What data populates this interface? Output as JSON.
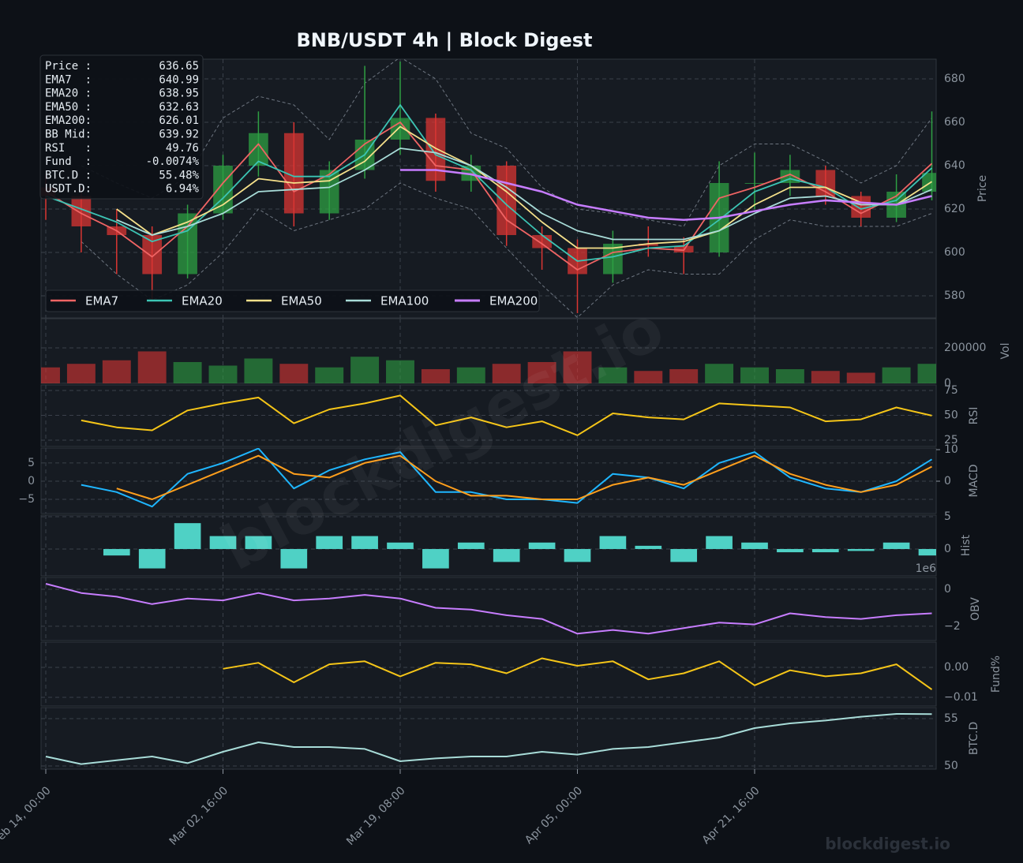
{
  "chart_data": {
    "type": "multi-panel",
    "title": "BNB/USDT  4h  |  Block Digest",
    "watermark": "blockdigest.io",
    "x": [
      "Feb 14, 00:00",
      "Feb 17, 08:00",
      "Feb 20, 16:00",
      "Feb 24, 00:00",
      "Feb 27, 08:00",
      "Mar 02, 16:00",
      "Mar 06, 00:00",
      "Mar 09, 08:00",
      "Mar 12, 16:00",
      "Mar 16, 00:00",
      "Mar 19, 08:00",
      "Mar 22, 16:00",
      "Mar 26, 00:00",
      "Mar 29, 08:00",
      "Apr 01, 16:00",
      "Apr 05, 00:00",
      "Apr 08, 08:00",
      "Apr 11, 16:00",
      "Apr 15, 00:00",
      "Apr 18, 08:00",
      "Apr 21, 16:00",
      "Apr 25, 00:00",
      "Apr 28, 08:00",
      "May 01, 16:00",
      "May 05, 00:00",
      "May 08, 08:00"
    ],
    "xticks": [
      "Feb 14, 00:00",
      "Mar 02, 16:00",
      "Mar 19, 08:00",
      "Apr 05, 00:00",
      "Apr 21, 16:00"
    ],
    "grid": true,
    "info_box": {
      "rows": [
        [
          "Price :",
          "636.65"
        ],
        [
          "EMA7  :",
          "640.99"
        ],
        [
          "EMA20 :",
          "638.95"
        ],
        [
          "EMA50 :",
          "632.63"
        ],
        [
          "EMA200:",
          "626.01"
        ],
        [
          "BB Mid:",
          "639.92"
        ],
        [
          "RSI   :",
          "49.76"
        ],
        [
          "Fund  :",
          "-0.0074%"
        ],
        [
          "BTC.D :",
          "55.48%"
        ],
        [
          "USDT.D:",
          "6.94%"
        ]
      ]
    },
    "panels": [
      {
        "type": "candlestick",
        "ylabel": "Price",
        "ylim": [
          569.8,
          689.1
        ],
        "yticks": [
          580,
          600,
          620,
          640,
          660,
          680
        ],
        "up_color": "#2ea043",
        "down_color": "#da3633",
        "legend_loc": "lower left",
        "open": [
          630,
          626,
          612,
          608,
          590,
          618,
          640,
          655,
          618,
          638,
          652,
          662,
          633,
          640,
          608,
          602,
          590,
          604,
          603,
          600,
          632,
          632,
          638,
          626,
          616,
          628
        ],
        "high": [
          636,
          630,
          620,
          612,
          622,
          645,
          665,
          660,
          642,
          686,
          688,
          664,
          645,
          642,
          612,
          606,
          610,
          612,
          607,
          642,
          646,
          645,
          640,
          628,
          636,
          665
        ],
        "low": [
          615,
          600,
          590,
          578,
          588,
          615,
          635,
          612,
          615,
          634,
          645,
          628,
          628,
          603,
          592,
          572,
          586,
          598,
          590,
          598,
          620,
          626,
          622,
          612,
          614,
          624
        ],
        "close": [
          626,
          612,
          608,
          590,
          618,
          640,
          655,
          618,
          638,
          652,
          662,
          633,
          640,
          608,
          602,
          590,
          604,
          603,
          600,
          632,
          632,
          638,
          626,
          616,
          628,
          636.65
        ],
        "bands": {
          "color": "#6e7681",
          "upper": [
            null,
            640,
            632,
            625,
            635,
            662,
            672,
            668,
            652,
            678,
            690,
            680,
            655,
            648,
            630,
            620,
            618,
            615,
            612,
            640,
            650,
            650,
            642,
            632,
            640,
            662
          ],
          "lower": [
            null,
            605,
            590,
            578,
            585,
            600,
            620,
            610,
            615,
            620,
            632,
            625,
            620,
            602,
            585,
            570,
            585,
            592,
            590,
            590,
            606,
            615,
            612,
            612,
            612,
            618
          ]
        },
        "series": [
          {
            "name": "EMA7",
            "color": "#f06464",
            "values": [
              628,
              618,
              610,
              598,
              612,
              632,
              650,
              628,
              636,
              650,
              660,
              640,
              638,
              615,
              604,
              592,
              600,
              602,
              601,
              625,
              630,
              636,
              628,
              618,
              626,
              640.99
            ]
          },
          {
            "name": "EMA20",
            "color": "#3cc4b4",
            "values": [
              626,
              620,
              614,
              605,
              610,
              625,
              642,
              635,
              635,
              645,
              668,
              645,
              638,
              622,
              608,
              596,
              598,
              602,
              603,
              615,
              628,
              634,
              630,
              620,
              624,
              638.95
            ]
          },
          {
            "name": "EMA50",
            "color": "#f5e08a",
            "values": [
              null,
              null,
              620,
              608,
              614,
              622,
              634,
              632,
              633,
              642,
              658,
              648,
              640,
              628,
              614,
              602,
              602,
              604,
              605,
              610,
              622,
              630,
              630,
              623,
              622,
              632.63
            ]
          },
          {
            "name": "EMA100",
            "color": "#a8dcd8",
            "values": [
              null,
              null,
              615,
              608,
              612,
              618,
              628,
              629,
              630,
              638,
              648,
              646,
              640,
              630,
              618,
              610,
              606,
              606,
              606,
              610,
              618,
              625,
              626,
              622,
              622,
              629
            ]
          },
          {
            "name": "EMA200",
            "color": "#c77dff",
            "values": [
              null,
              null,
              null,
              null,
              null,
              null,
              null,
              null,
              null,
              null,
              638,
              638,
              636,
              632,
              628,
              622,
              619,
              616,
              615,
              616,
              619,
              622,
              624,
              623,
              622,
              626.01
            ]
          }
        ]
      },
      {
        "type": "volume",
        "ylabel": "Vol",
        "ylim": [
          0,
          364000
        ],
        "yticks": [
          0,
          200000
        ],
        "values": [
          90000,
          110000,
          130000,
          180000,
          120000,
          100000,
          140000,
          110000,
          90000,
          150000,
          130000,
          80000,
          90000,
          110000,
          120000,
          180000,
          90000,
          70000,
          80000,
          110000,
          90000,
          80000,
          70000,
          60000,
          90000,
          110000
        ]
      },
      {
        "type": "line",
        "ylabel": "RSI",
        "ylim": [
          18.7,
          80.6
        ],
        "yticks": [
          25,
          50,
          75
        ],
        "series": [
          {
            "color": "#f5c518",
            "values": [
              null,
              45,
              38,
              35,
              55,
              62,
              68,
              42,
              56,
              62,
              70,
              40,
              48,
              38,
              44,
              30,
              52,
              48,
              46,
              62,
              60,
              58,
              44,
              46,
              58,
              49.76
            ]
          }
        ]
      },
      {
        "type": "line",
        "ylabel": "MACD",
        "ylim": [
          -8.9,
          9.1
        ],
        "yticks": [
          5,
          0,
          {
            "value": -5,
            "label": "−5"
          }
        ],
        "y2lim": [
          -10.25,
          10.5
        ],
        "y2ticks": [
          0,
          10
        ],
        "series": [
          {
            "color": "#1fb6ff",
            "values": [
              null,
              -1,
              -3,
              -7,
              2,
              5,
              9,
              -2,
              3,
              6,
              8,
              -3,
              -3,
              -5,
              -5,
              -6,
              2,
              1,
              -2,
              5,
              8,
              1,
              -2,
              -3,
              0,
              6
            ]
          },
          {
            "color": "#ff9f1c",
            "values": [
              null,
              null,
              -2,
              -5,
              -1,
              3,
              7,
              2,
              1,
              5,
              7,
              0,
              -4,
              -4,
              -5,
              -5,
              -1,
              1,
              -1,
              3,
              7,
              2,
              -1,
              -3,
              -1,
              4
            ]
          }
        ]
      },
      {
        "type": "bar",
        "ylabel": "Hist",
        "ylim": [
          -4.15,
          5.24
        ],
        "yticks": [
          0,
          5
        ],
        "color": "#4fd1c5",
        "values": [
          null,
          null,
          -1,
          -3,
          4,
          2,
          2,
          -3,
          2,
          2,
          1,
          -3,
          1,
          -2,
          1,
          -2,
          2,
          0.5,
          -2,
          2,
          1,
          -0.5,
          -0.5,
          -0.3,
          1,
          -1
        ]
      },
      {
        "type": "line",
        "ylabel": "OBV",
        "offset_label": "1e6",
        "ylim": [
          -2.77,
          0.64
        ],
        "yticks": [
          0,
          {
            "value": -2,
            "label": "−2"
          }
        ],
        "series": [
          {
            "color": "#c77dff",
            "values": [
              0.3,
              -0.2,
              -0.4,
              -0.8,
              -0.5,
              -0.6,
              -0.2,
              -0.6,
              -0.5,
              -0.3,
              -0.5,
              -1.0,
              -1.1,
              -1.4,
              -1.6,
              -2.4,
              -2.2,
              -2.4,
              -2.1,
              -1.8,
              -1.9,
              -1.3,
              -1.5,
              -1.6,
              -1.4,
              -1.3
            ]
          }
        ]
      },
      {
        "type": "line",
        "ylabel": "Fund%",
        "ylim": [
          -0.0129,
          0.0084
        ],
        "yticks": [
          {
            "value": 0,
            "label": "0.00"
          },
          {
            "value": -0.01,
            "label": "−0.01"
          }
        ],
        "series": [
          {
            "color": "#f5c518",
            "values": [
              null,
              null,
              null,
              null,
              null,
              -0.0005,
              0.0015,
              -0.005,
              0.001,
              0.002,
              -0.003,
              0.0015,
              0.001,
              -0.002,
              0.003,
              0.0005,
              0.002,
              -0.004,
              -0.002,
              0.002,
              -0.006,
              -0.001,
              -0.003,
              -0.002,
              0.001,
              -0.0074
            ]
          }
        ]
      },
      {
        "type": "line",
        "ylabel": "BTC.D",
        "ylim": [
          49.67,
          56.17
        ],
        "yticks": [
          50,
          55
        ],
        "series": [
          {
            "color": "#a8dcd8",
            "values": [
              51.0,
              50.2,
              50.6,
              51.0,
              50.3,
              51.5,
              52.5,
              52.0,
              52.0,
              51.8,
              50.5,
              50.8,
              51.0,
              51.0,
              51.5,
              51.2,
              51.8,
              52.0,
              52.5,
              53.0,
              54.0,
              54.5,
              54.8,
              55.2,
              55.5,
              55.48
            ]
          }
        ]
      }
    ]
  }
}
